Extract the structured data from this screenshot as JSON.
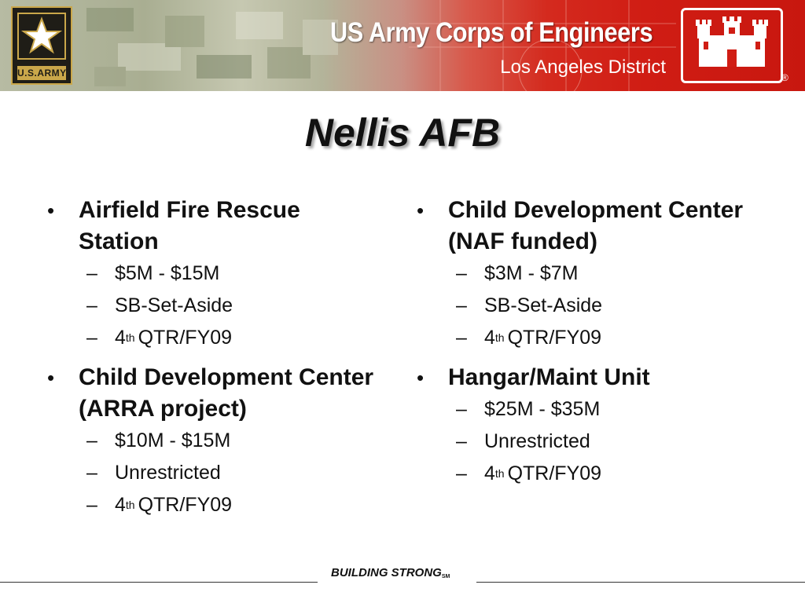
{
  "header": {
    "organization": "US Army Corps of Engineers",
    "district": "Los Angeles District",
    "army_logo_text": "U.S.ARMY",
    "registered_mark": "®"
  },
  "slide": {
    "title": "Nellis AFB"
  },
  "columns": [
    {
      "items": [
        {
          "title": "Airfield Fire Rescue Station",
          "cost": "$5M - $15M",
          "setaside": "SB-Set-Aside",
          "quarter_num": "4",
          "quarter_sup": "th",
          "quarter_rest": "QTR/FY09"
        },
        {
          "title": "Child Development Center (ARRA project)",
          "cost": "$10M - $15M",
          "setaside": "Unrestricted",
          "quarter_num": "4",
          "quarter_sup": "th",
          "quarter_rest": "QTR/FY09"
        }
      ]
    },
    {
      "items": [
        {
          "title": "Child Development Center (NAF funded)",
          "cost": "$3M - $7M",
          "setaside": "SB-Set-Aside",
          "quarter_num": "4",
          "quarter_sup": "th",
          "quarter_rest": "QTR/FY09"
        },
        {
          "title": "Hangar/Maint Unit",
          "cost": "$25M - $35M",
          "setaside": "Unrestricted",
          "quarter_num": "4",
          "quarter_sup": "th",
          "quarter_rest": "QTR/FY09"
        }
      ]
    }
  ],
  "footer": {
    "text": "BUILDING STRONG",
    "mark": "SM"
  },
  "symbols": {
    "bullet": "•",
    "dash": "–"
  },
  "colors": {
    "brand_red": "#d01d14",
    "army_gold": "#caa74a",
    "army_black": "#1f1d17",
    "text": "#111111"
  },
  "icons": [
    "army-star-icon",
    "usace-castle-icon"
  ]
}
